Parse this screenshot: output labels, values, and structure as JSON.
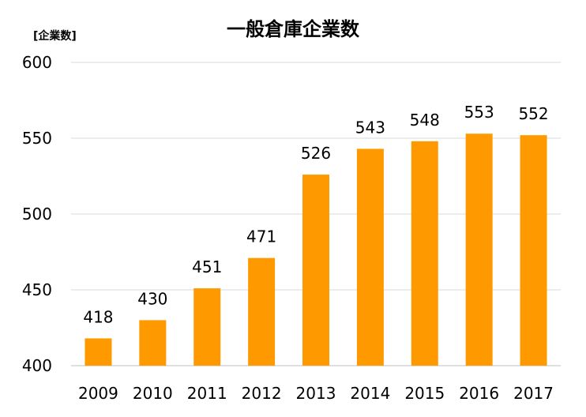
{
  "chart_data": {
    "type": "bar",
    "title": "一般倉庫企業数",
    "ylabel": "[企業数]",
    "xlabel": "",
    "categories": [
      "2009",
      "2010",
      "2011",
      "2012",
      "2013",
      "2014",
      "2015",
      "2016",
      "2017"
    ],
    "values": [
      418,
      430,
      451,
      471,
      526,
      543,
      548,
      553,
      552
    ],
    "ylim": [
      400,
      600
    ],
    "yticks": [
      400,
      450,
      500,
      550,
      600
    ],
    "grid": true,
    "legend": "none",
    "bar_color": "#FF9900",
    "grid_color": "#D9D9D9"
  }
}
